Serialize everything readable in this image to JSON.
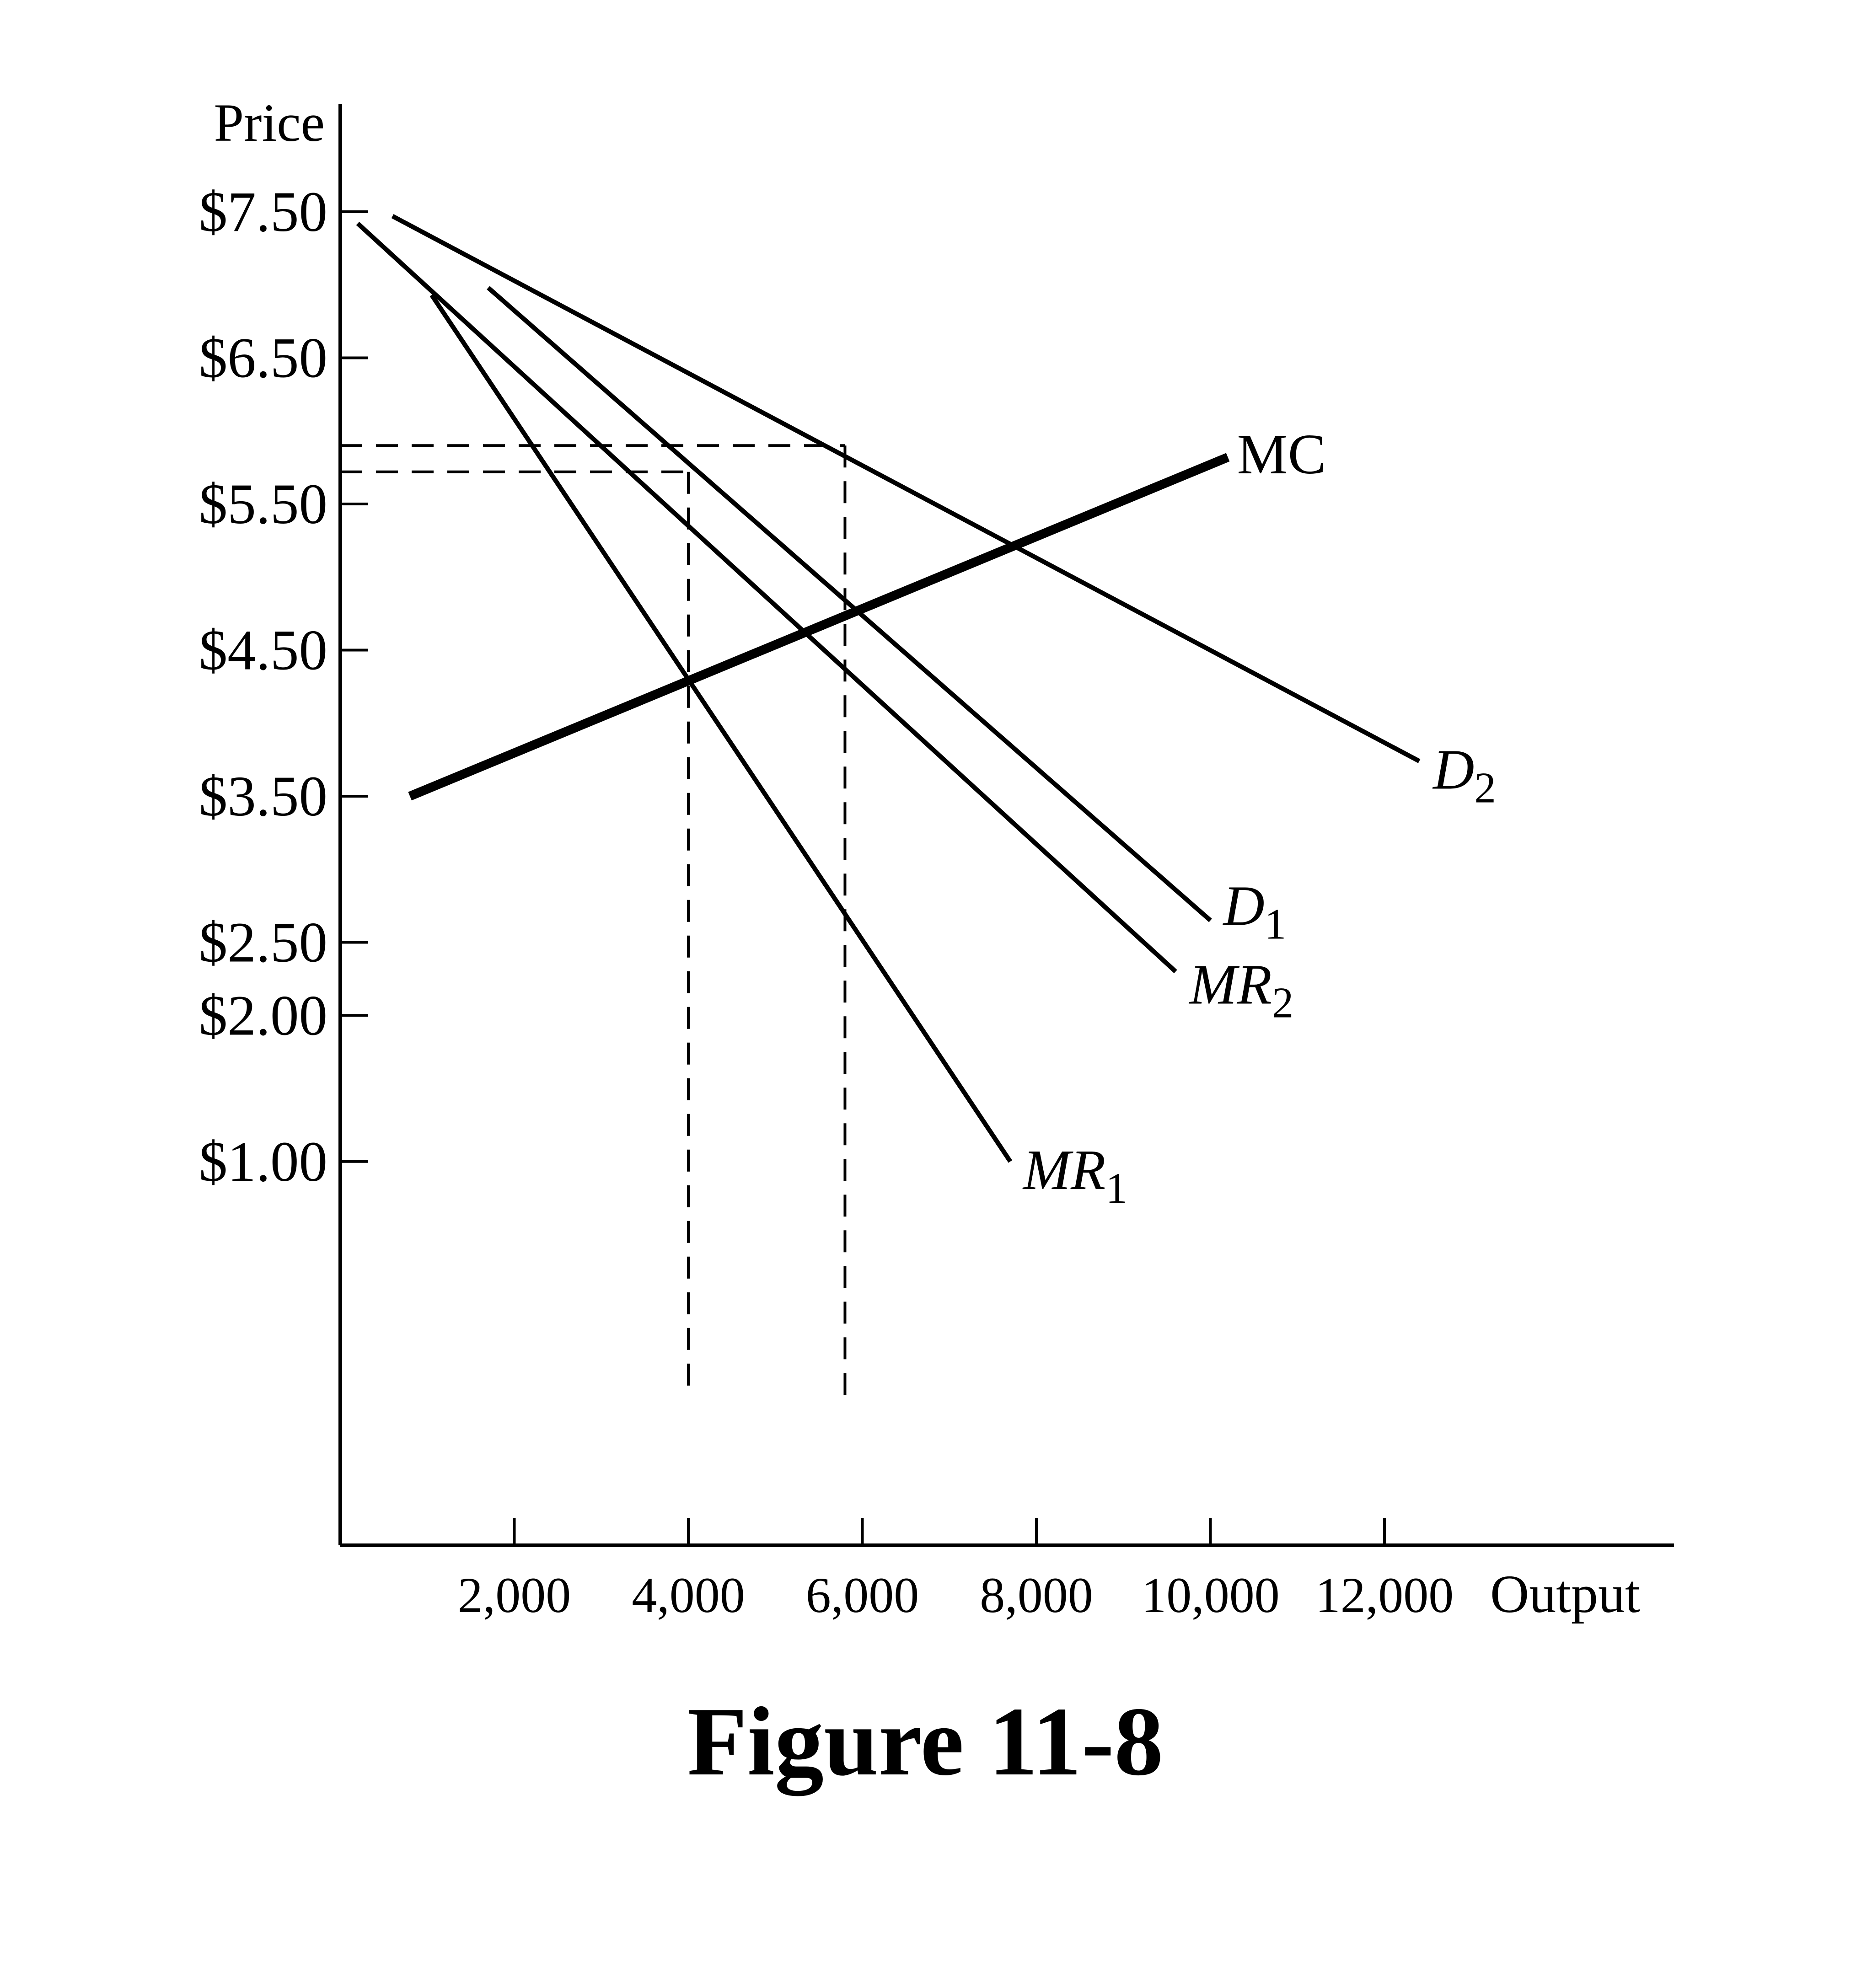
{
  "chart_data": {
    "type": "line",
    "title": "",
    "caption": "Figure 11-8",
    "xlabel": "Output",
    "ylabel": "Price",
    "x_ticks": [
      2000,
      4000,
      6000,
      8000,
      10000,
      12000
    ],
    "x_tick_labels": [
      "2,000",
      "4,000",
      "6,000",
      "8,000",
      "10,000",
      "12,000"
    ],
    "y_ticks": [
      7.5,
      6.5,
      5.5,
      4.5,
      3.5,
      2.5,
      2.0,
      1.0
    ],
    "y_tick_labels": [
      "$7.50",
      "$6.50",
      "$5.50",
      "$4.50",
      "$3.50",
      "$2.50",
      "$2.00",
      "$1.00"
    ],
    "grid": false,
    "series": [
      {
        "name": "D2",
        "label_main": "D",
        "label_sub": "2",
        "weight": "normal",
        "points": [
          [
            600,
            7.47
          ],
          [
            12400,
            3.74
          ]
        ]
      },
      {
        "name": "D1",
        "label_main": "D",
        "label_sub": "1",
        "weight": "normal",
        "points": [
          [
            1700,
            6.98
          ],
          [
            10000,
            2.65
          ]
        ]
      },
      {
        "name": "MR2",
        "label_main": "MR",
        "label_sub": "2",
        "weight": "normal",
        "points": [
          [
            200,
            7.42
          ],
          [
            9600,
            2.3
          ]
        ]
      },
      {
        "name": "MR1",
        "label_main": "MR",
        "label_sub": "1",
        "weight": "normal",
        "points": [
          [
            1050,
            6.93
          ],
          [
            7700,
            1.0
          ]
        ]
      },
      {
        "name": "MC",
        "label_main": "MC",
        "label_sub": "",
        "weight": "bold",
        "points": [
          [
            800,
            3.5
          ],
          [
            10200,
            5.82
          ]
        ]
      }
    ],
    "reference_lines": [
      {
        "from": [
          0,
          5.9
        ],
        "to": [
          5800,
          5.9
        ]
      },
      {
        "from": [
          0,
          5.72
        ],
        "to": [
          4000,
          5.72
        ]
      },
      {
        "from": [
          4000,
          5.72
        ],
        "to": [
          4000,
          -0.6
        ]
      },
      {
        "from": [
          5800,
          5.9
        ],
        "to": [
          5800,
          -0.6
        ]
      }
    ]
  }
}
